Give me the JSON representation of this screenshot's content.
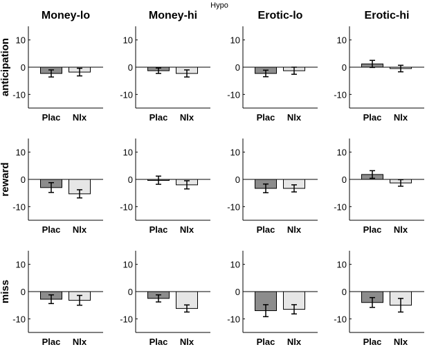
{
  "figure": {
    "suptitle": "Hypo",
    "colors": {
      "Plac": "#8c8c8c",
      "Nlx": "#e6e6e6",
      "axis": "#000000",
      "zero_line": "#000000"
    }
  },
  "chart_data": [
    {
      "type": "bar",
      "title": "Money-lo",
      "ylabel": "anticipation",
      "categories": [
        "Plac",
        "Nlx"
      ],
      "values": [
        -2.3,
        -1.8
      ],
      "errors": [
        1.3,
        1.4
      ],
      "ylim": [
        -15,
        15
      ],
      "yticks": [
        -10,
        0,
        10
      ],
      "grid": false
    },
    {
      "type": "bar",
      "title": "Money-hi",
      "ylabel": "",
      "categories": [
        "Plac",
        "Nlx"
      ],
      "values": [
        -1.3,
        -2.3
      ],
      "errors": [
        1.0,
        1.3
      ],
      "ylim": [
        -15,
        15
      ],
      "yticks": [
        -10,
        0,
        10
      ],
      "grid": false
    },
    {
      "type": "bar",
      "title": "Erotic-lo",
      "ylabel": "",
      "categories": [
        "Plac",
        "Nlx"
      ],
      "values": [
        -2.3,
        -1.3
      ],
      "errors": [
        1.2,
        1.3
      ],
      "ylim": [
        -15,
        15
      ],
      "yticks": [
        -10,
        0,
        10
      ],
      "grid": false
    },
    {
      "type": "bar",
      "title": "Erotic-hi",
      "ylabel": "",
      "categories": [
        "Plac",
        "Nlx"
      ],
      "values": [
        1.2,
        -0.5
      ],
      "errors": [
        1.3,
        1.2
      ],
      "ylim": [
        -15,
        15
      ],
      "yticks": [
        -10,
        0,
        10
      ],
      "grid": false
    },
    {
      "type": "bar",
      "title": "",
      "ylabel": "reward",
      "categories": [
        "Plac",
        "Nlx"
      ],
      "values": [
        -3.0,
        -5.3
      ],
      "errors": [
        1.8,
        1.5
      ],
      "ylim": [
        -15,
        15
      ],
      "yticks": [
        -10,
        0,
        10
      ],
      "grid": false
    },
    {
      "type": "bar",
      "title": "",
      "ylabel": "",
      "categories": [
        "Plac",
        "Nlx"
      ],
      "values": [
        -0.3,
        -2.0
      ],
      "errors": [
        1.5,
        1.5
      ],
      "ylim": [
        -15,
        15
      ],
      "yticks": [
        -10,
        0,
        10
      ],
      "grid": false
    },
    {
      "type": "bar",
      "title": "",
      "ylabel": "",
      "categories": [
        "Plac",
        "Nlx"
      ],
      "values": [
        -3.3,
        -3.3
      ],
      "errors": [
        1.6,
        1.3
      ],
      "ylim": [
        -15,
        15
      ],
      "yticks": [
        -10,
        0,
        10
      ],
      "grid": false
    },
    {
      "type": "bar",
      "title": "",
      "ylabel": "",
      "categories": [
        "Plac",
        "Nlx"
      ],
      "values": [
        1.8,
        -1.3
      ],
      "errors": [
        1.4,
        1.2
      ],
      "ylim": [
        -15,
        15
      ],
      "yticks": [
        -10,
        0,
        10
      ],
      "grid": false
    },
    {
      "type": "bar",
      "title": "",
      "ylabel": "miss",
      "categories": [
        "Plac",
        "Nlx"
      ],
      "values": [
        -2.8,
        -3.2
      ],
      "errors": [
        1.6,
        1.8
      ],
      "ylim": [
        -15,
        15
      ],
      "yticks": [
        -10,
        0,
        10
      ],
      "grid": false
    },
    {
      "type": "bar",
      "title": "",
      "ylabel": "",
      "categories": [
        "Plac",
        "Nlx"
      ],
      "values": [
        -2.5,
        -6.2
      ],
      "errors": [
        1.3,
        1.3
      ],
      "ylim": [
        -15,
        15
      ],
      "yticks": [
        -10,
        0,
        10
      ],
      "grid": false
    },
    {
      "type": "bar",
      "title": "",
      "ylabel": "",
      "categories": [
        "Plac",
        "Nlx"
      ],
      "values": [
        -7.0,
        -6.5
      ],
      "errors": [
        2.2,
        1.7
      ],
      "ylim": [
        -15,
        15
      ],
      "yticks": [
        -10,
        0,
        10
      ],
      "grid": false
    },
    {
      "type": "bar",
      "title": "",
      "ylabel": "",
      "categories": [
        "Plac",
        "Nlx"
      ],
      "values": [
        -4.0,
        -5.0
      ],
      "errors": [
        1.8,
        2.5
      ],
      "ylim": [
        -15,
        15
      ],
      "yticks": [
        -10,
        0,
        10
      ],
      "grid": false
    }
  ]
}
